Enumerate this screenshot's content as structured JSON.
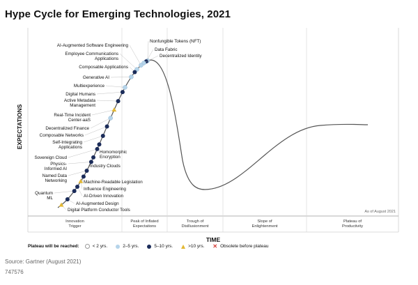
{
  "title": "Hype Cycle for Emerging Technologies, 2021",
  "source": "Source: Gartner (August 2021)",
  "doc_id": "747576",
  "colors": {
    "lt2": "#ffffff",
    "y2to5": "#b5d4ea",
    "y5to10": "#1b2c5a",
    "gt10": "#e3b834",
    "obsolete": "#d23a33",
    "curve": "#555555"
  },
  "chart_data": {
    "type": "scatter",
    "title": "Hype Cycle for Emerging Technologies, 2021",
    "xlabel": "TIME",
    "ylabel": "EXPECTATIONS",
    "as_of": "As of August 2021",
    "phases": [
      "Innovation Trigger",
      "Peak of Inflated Expectations",
      "Trough of Disillusionment",
      "Slope of Enlightenment",
      "Plateau of Productivity"
    ],
    "legend": {
      "title": "Plateau will be reached:",
      "items": [
        {
          "label": "< 2 yrs.",
          "marker": "lt2"
        },
        {
          "label": "2–5 yrs.",
          "marker": "y2to5"
        },
        {
          "label": "5–10 yrs.",
          "marker": "y5to10"
        },
        {
          "label": ">10 yrs.",
          "marker": "gt10"
        },
        {
          "label": "Obsolete before plateau",
          "marker": "obsolete"
        }
      ]
    },
    "technologies": [
      {
        "name": "Nonfungible Tokens (NFT)",
        "t": 0.999,
        "plateau": "y2to5"
      },
      {
        "name": "Data Fabric",
        "t": 0.985,
        "plateau": "y5to10"
      },
      {
        "name": "Decentralized Identity",
        "t": 0.96,
        "plateau": "y2to5"
      },
      {
        "name": "AI-Augmented Software Engineering",
        "t": 0.93,
        "plateau": "y2to5"
      },
      {
        "name": "Employee Communications Applications",
        "t": 0.885,
        "plateau": "y2to5"
      },
      {
        "name": "Composable Applications",
        "t": 0.86,
        "plateau": "y5to10"
      },
      {
        "name": "Generative AI",
        "t": 0.82,
        "plateau": "y2to5"
      },
      {
        "name": "Multiexperience",
        "t": 0.745,
        "plateau": "y2to5"
      },
      {
        "name": "Digital Humans",
        "t": 0.715,
        "plateau": "y5to10"
      },
      {
        "name": "Active Metadata Management",
        "t": 0.66,
        "plateau": "y5to10"
      },
      {
        "name": "Real-Time Incident Center-aaS",
        "t": 0.61,
        "plateau": "gt10"
      },
      {
        "name": "Decentralized Finance",
        "t": 0.565,
        "plateau": "y2to5"
      },
      {
        "name": "Composable Networks",
        "t": 0.52,
        "plateau": "y5to10"
      },
      {
        "name": "Self-Integrating Applications",
        "t": 0.47,
        "plateau": "y5to10"
      },
      {
        "name": "Homomorphic Encryption",
        "t": 0.425,
        "plateau": "y5to10"
      },
      {
        "name": "Sovereign Cloud",
        "t": 0.4,
        "plateau": "y5to10"
      },
      {
        "name": "Industry Clouds",
        "t": 0.355,
        "plateau": "y5to10"
      },
      {
        "name": "Physics-Informed AI",
        "t": 0.33,
        "plateau": "y5to10"
      },
      {
        "name": "Named Data Networking",
        "t": 0.28,
        "plateau": "y5to10"
      },
      {
        "name": "Machine-Readable Legislation",
        "t": 0.245,
        "plateau": "y5to10"
      },
      {
        "name": "Influence Engineering",
        "t": 0.215,
        "plateau": "gt10"
      },
      {
        "name": "AI-Driven Innovation",
        "t": 0.18,
        "plateau": "y5to10"
      },
      {
        "name": "Quantum ML",
        "t": 0.15,
        "plateau": "y5to10"
      },
      {
        "name": "AI-Augmented Design",
        "t": 0.085,
        "plateau": "y5to10"
      },
      {
        "name": "Digital Platform Conductor Tools",
        "t": 0.03,
        "plateau": "gt10"
      }
    ]
  }
}
